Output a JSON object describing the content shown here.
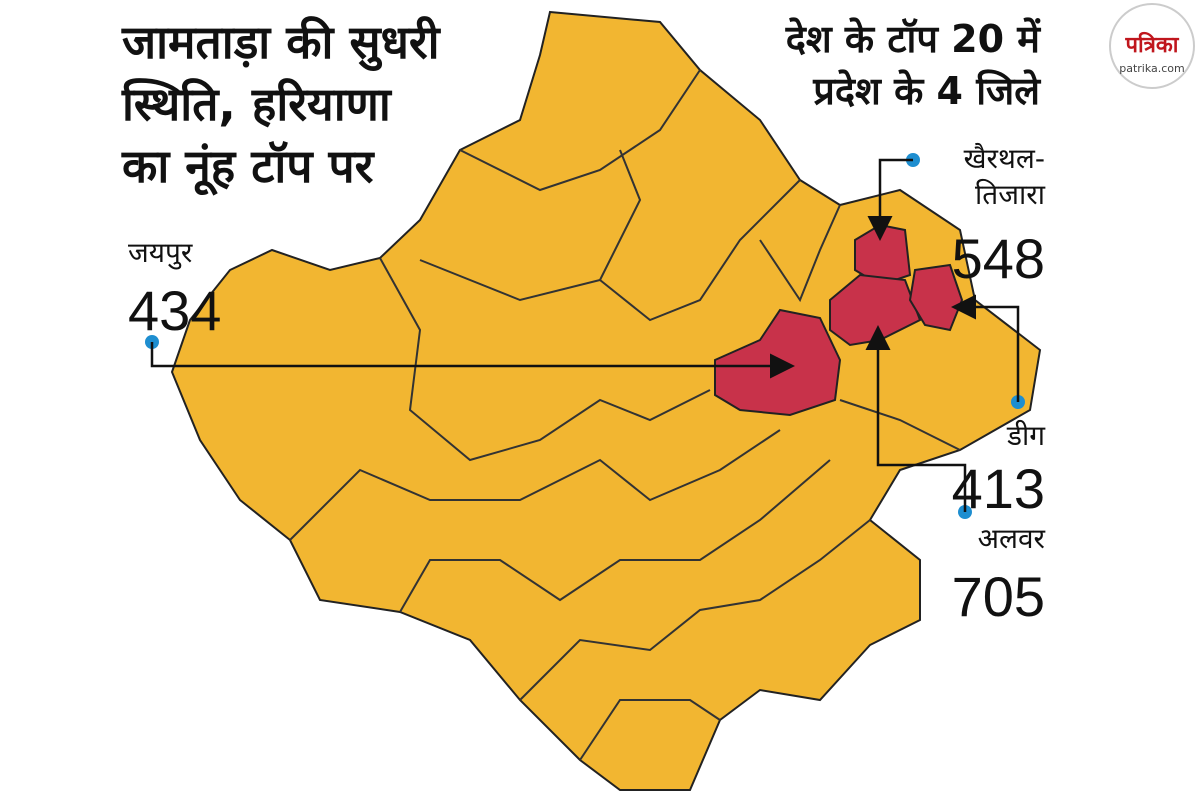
{
  "title": {
    "lines": [
      "जामताड़ा की सुधरी",
      "स्थिति, हरियाणा",
      "का नूंह टॉप पर"
    ]
  },
  "subtitle": {
    "lines": [
      "देश के टॉप 20 में",
      "प्रदेश के 4 जिले"
    ]
  },
  "districts": [
    {
      "name_lines": [
        "जयपुर"
      ],
      "value": 434
    },
    {
      "name_lines": [
        "खैरथल-",
        "तिजारा"
      ],
      "value": 548
    },
    {
      "name_lines": [
        "डीग"
      ],
      "value": 413
    },
    {
      "name_lines": [
        "अलवर"
      ],
      "value": 705
    }
  ],
  "logo": {
    "name": "पत्रिका",
    "site": "patrika.com"
  }
}
